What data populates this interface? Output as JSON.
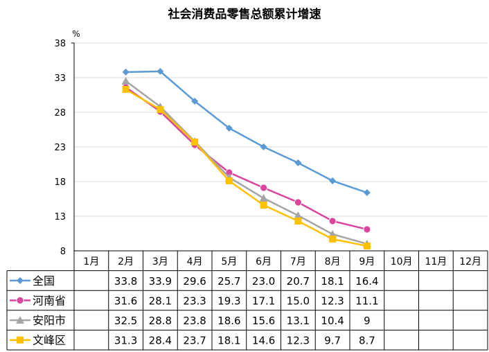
{
  "chart_data": {
    "type": "line",
    "title": "社会消费品零售总额累计增速",
    "ylabel": "%",
    "xlabel": "",
    "ylim": [
      8,
      38
    ],
    "yticks": [
      8,
      13,
      18,
      23,
      28,
      33,
      38
    ],
    "categories": [
      "1月",
      "2月",
      "3月",
      "4月",
      "5月",
      "6月",
      "7月",
      "8月",
      "9月",
      "10月",
      "11月",
      "12月"
    ],
    "grid": true,
    "legend": "data-table-left",
    "series": [
      {
        "name": "全国",
        "color": "#5B9BD5",
        "marker": "diamond",
        "values": [
          null,
          33.8,
          33.9,
          29.6,
          25.7,
          23.0,
          20.7,
          18.1,
          16.4,
          null,
          null,
          null
        ],
        "labels": [
          "",
          "33.8",
          "33.9",
          "29.6",
          "25.7",
          "23.0",
          "20.7",
          "18.1",
          "16.4",
          "",
          "",
          ""
        ]
      },
      {
        "name": "河南省",
        "color": "#D9469E",
        "marker": "circle",
        "values": [
          null,
          31.6,
          28.1,
          23.3,
          19.3,
          17.1,
          15.0,
          12.3,
          11.1,
          null,
          null,
          null
        ],
        "labels": [
          "",
          "31.6",
          "28.1",
          "23.3",
          "19.3",
          "17.1",
          "15.0",
          "12.3",
          "11.1",
          "",
          "",
          ""
        ]
      },
      {
        "name": "安阳市",
        "color": "#A5A5A5",
        "marker": "triangle",
        "values": [
          null,
          32.5,
          28.8,
          23.8,
          18.6,
          15.6,
          13.1,
          10.4,
          9,
          null,
          null,
          null
        ],
        "labels": [
          "",
          "32.5",
          "28.8",
          "23.8",
          "18.6",
          "15.6",
          "13.1",
          "10.4",
          "9",
          "",
          "",
          ""
        ]
      },
      {
        "name": "文峰区",
        "color": "#FFC000",
        "marker": "square",
        "values": [
          null,
          31.3,
          28.4,
          23.7,
          18.1,
          14.6,
          12.3,
          9.7,
          8.7,
          null,
          null,
          null
        ],
        "labels": [
          "",
          "31.3",
          "28.4",
          "23.7",
          "18.1",
          "14.6",
          "12.3",
          "9.7",
          "8.7",
          "",
          "",
          ""
        ]
      }
    ]
  }
}
